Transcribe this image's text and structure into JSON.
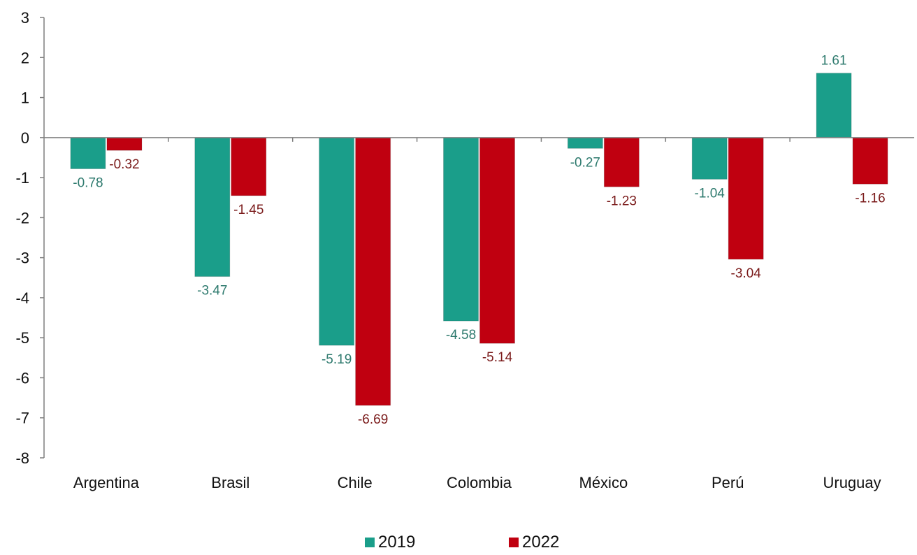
{
  "chart_data": {
    "type": "bar",
    "categories": [
      "Argentina",
      "Brasil",
      "Chile",
      "Colombia",
      "México",
      "Perú",
      "Uruguay"
    ],
    "series": [
      {
        "name": "2019",
        "color": "#1a9e8a",
        "label_color": "#2e7a6e",
        "values": [
          -0.78,
          -3.47,
          -5.19,
          -4.58,
          -0.27,
          -1.04,
          1.61
        ]
      },
      {
        "name": "2022",
        "color": "#c00010",
        "label_color": "#7a1a1a",
        "values": [
          -0.32,
          -1.45,
          -6.69,
          -5.14,
          -1.23,
          -3.04,
          -1.16
        ]
      }
    ],
    "data_labels": [
      [
        "-0.78",
        "-3.47",
        "-5.19",
        "-4.58",
        "-0.27",
        "-1.04",
        "1.61"
      ],
      [
        "-0.32",
        "-1.45",
        "-6.69",
        "-5.14",
        "-1.23",
        "-3.04",
        "-1.16"
      ]
    ],
    "ylim": [
      -8,
      3
    ],
    "yticks": [
      "3",
      "2",
      "1",
      "0",
      "-1",
      "-2",
      "-3",
      "-4",
      "-5",
      "-6",
      "-7",
      "-8"
    ],
    "title": "",
    "xlabel": "",
    "ylabel": "",
    "grid": false,
    "legend_position": "bottom-center"
  }
}
